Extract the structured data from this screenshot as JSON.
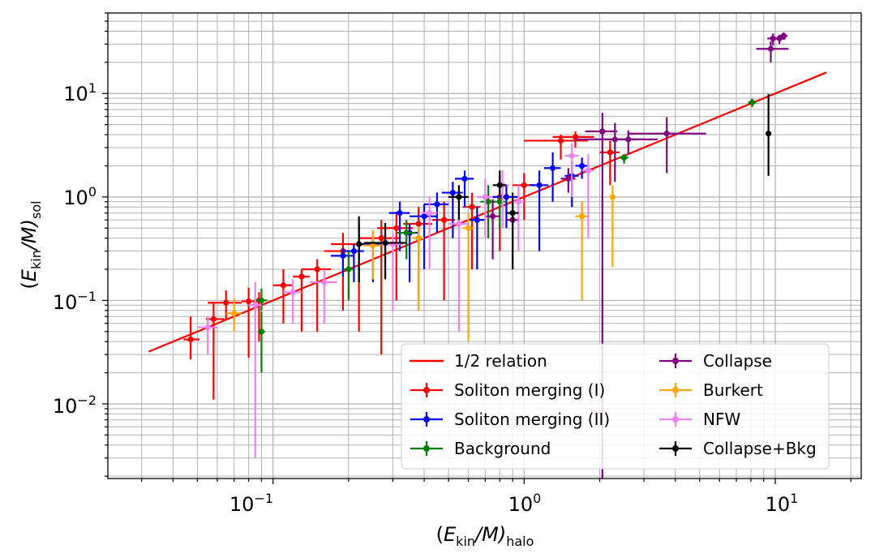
{
  "chart_data": {
    "type": "scatter",
    "xscale": "log",
    "yscale": "log",
    "xlim": [
      0.022,
      22
    ],
    "ylim": [
      0.0019,
      60
    ],
    "grid": true,
    "x_ticks": [
      {
        "value": 0.1,
        "base": "10",
        "exp": "−1"
      },
      {
        "value": 1,
        "base": "10",
        "exp": "0"
      },
      {
        "value": 10,
        "base": "10",
        "exp": "1"
      }
    ],
    "y_ticks": [
      {
        "value": 0.01,
        "base": "10",
        "exp": "−2"
      },
      {
        "value": 0.1,
        "base": "10",
        "exp": "−1"
      },
      {
        "value": 1,
        "base": "10",
        "exp": "0"
      },
      {
        "value": 10,
        "base": "10",
        "exp": "1"
      }
    ],
    "xlabel": {
      "open": "(",
      "var": "E",
      "sub_var": "kin",
      "rest": "/M)",
      "sub": "halo"
    },
    "ylabel": {
      "open": "(",
      "var": "E",
      "sub_var": "kin",
      "rest": "/M)",
      "sub": "sol"
    },
    "relation": {
      "label": "1/2 relation",
      "color": "#ff0000",
      "x": [
        0.032,
        16
      ],
      "y": [
        0.032,
        16
      ]
    },
    "legend_position": "lower-right",
    "series": [
      {
        "name": "Soliton merging (I)",
        "color": "#ff0000",
        "points": [
          [
            0.047,
            0.042,
            0.015,
            0.028,
            0.003,
            0.004
          ],
          [
            0.058,
            0.066,
            0.055,
            0.028,
            0.004,
            0.006
          ],
          [
            0.065,
            0.095,
            0.03,
            0.03,
            0.01,
            0.01
          ],
          [
            0.08,
            0.098,
            0.07,
            0.035,
            0.005,
            0.006
          ],
          [
            0.088,
            0.1,
            0.06,
            0.02,
            0.004,
            0.005
          ],
          [
            0.11,
            0.14,
            0.08,
            0.06,
            0.01,
            0.01
          ],
          [
            0.13,
            0.17,
            0.12,
            0.03,
            0.01,
            0.01
          ],
          [
            0.15,
            0.2,
            0.15,
            0.05,
            0.02,
            0.02
          ],
          [
            0.19,
            0.3,
            0.22,
            0.15,
            0.03,
            0.03
          ],
          [
            0.22,
            0.35,
            0.3,
            0.2,
            0.05,
            0.05
          ],
          [
            0.27,
            0.4,
            0.37,
            0.2,
            0.05,
            0.05
          ],
          [
            0.31,
            0.5,
            0.4,
            0.22,
            0.05,
            0.05
          ],
          [
            0.38,
            0.55,
            0.45,
            0.25,
            0.05,
            0.05
          ],
          [
            0.48,
            0.6,
            0.5,
            0.3,
            0.05,
            0.05
          ],
          [
            0.62,
            0.8,
            0.6,
            0.3,
            0.05,
            0.05
          ],
          [
            0.8,
            1.0,
            0.7,
            0.3,
            0.05,
            0.05
          ],
          [
            1.0,
            1.3,
            0.7,
            0.4,
            0.1,
            0.1
          ],
          [
            1.4,
            3.5,
            1.2,
            0.5,
            0.4,
            0.4
          ],
          [
            1.6,
            3.8,
            0.8,
            0.5,
            0.3,
            0.3
          ],
          [
            2.2,
            2.7,
            1.4,
            0.8,
            0.2,
            0.2
          ]
        ]
      },
      {
        "name": "Soliton merging (II)",
        "color": "#0000ff",
        "points": [
          [
            0.19,
            0.27,
            0.1,
            0.05,
            0.02,
            0.02
          ],
          [
            0.21,
            0.3,
            0.15,
            0.05,
            0.02,
            0.02
          ],
          [
            0.25,
            0.35,
            0.2,
            0.1,
            0.03,
            0.03
          ],
          [
            0.32,
            0.7,
            0.4,
            0.2,
            0.03,
            0.03
          ],
          [
            0.35,
            0.45,
            0.3,
            0.1,
            0.03,
            0.03
          ],
          [
            0.4,
            0.65,
            0.45,
            0.2,
            0.05,
            0.05
          ],
          [
            0.45,
            0.85,
            0.4,
            0.25,
            0.05,
            0.05
          ],
          [
            0.52,
            1.1,
            0.7,
            0.3,
            0.05,
            0.05
          ],
          [
            0.58,
            1.5,
            0.7,
            0.3,
            0.05,
            0.05
          ],
          [
            0.65,
            0.6,
            0.4,
            0.2,
            0.05,
            0.05
          ],
          [
            0.85,
            1.0,
            0.5,
            0.3,
            0.1,
            0.1
          ],
          [
            1.15,
            1.3,
            1.0,
            0.5,
            0.1,
            0.1
          ],
          [
            1.3,
            1.9,
            1.0,
            0.8,
            0.1,
            0.1
          ],
          [
            1.55,
            1.6,
            0.8,
            0.6,
            0.1,
            0.1
          ],
          [
            1.7,
            2.0,
            0.5,
            0.4,
            0.1,
            0.1
          ]
        ]
      },
      {
        "name": "Background",
        "color": "#008000",
        "points": [
          [
            0.09,
            0.05,
            0.03,
            0.028,
            0.003,
            0.003
          ],
          [
            0.09,
            0.1,
            0.02,
            0.03,
            0.005,
            0.005
          ],
          [
            0.2,
            0.2,
            0.1,
            0.1,
            0.01,
            0.01
          ],
          [
            0.34,
            0.45,
            0.2,
            0.15,
            0.03,
            0.03
          ],
          [
            0.72,
            0.9,
            0.5,
            0.4,
            0.05,
            0.05
          ],
          [
            0.8,
            0.9,
            0.4,
            0.7,
            0.05,
            0.05
          ],
          [
            0.9,
            0.6,
            0.3,
            0.4,
            0.05,
            0.05
          ],
          [
            2.5,
            2.4,
            0.3,
            0.2,
            0.1,
            0.1
          ],
          [
            8.1,
            8.2,
            0.8,
            0.7,
            0.3,
            0.3
          ]
        ]
      },
      {
        "name": "Collapse",
        "color": "#800080",
        "points": [
          [
            0.75,
            0.65,
            0.4,
            0.3,
            0.05,
            0.05
          ],
          [
            0.9,
            0.6,
            0.4,
            0.3,
            0.05,
            0.05
          ],
          [
            1.5,
            1.5,
            0.4,
            0.4,
            0.1,
            0.1
          ],
          [
            2.05,
            4.3,
            4.8,
            2.2,
            0.3,
            0.3
          ],
          [
            2.3,
            3.6,
            2.2,
            1.6,
            0.7,
            0.7
          ],
          [
            2.6,
            3.6,
            1.0,
            0.8,
            0.8,
            0.8
          ],
          [
            3.7,
            4.1,
            2.4,
            1.8,
            1.1,
            1.6
          ],
          [
            9.6,
            27,
            7,
            5,
            1.2,
            1.7
          ],
          [
            9.8,
            34,
            5,
            4,
            0.5,
            0.5
          ],
          [
            10.4,
            34,
            4,
            3,
            0.6,
            0.6
          ],
          [
            10.8,
            36,
            3,
            3,
            0.4,
            0.4
          ]
        ]
      },
      {
        "name": "Burkert",
        "color": "#ffa500",
        "points": [
          [
            0.07,
            0.075,
            0.025,
            0.03,
            0.005,
            0.005
          ],
          [
            0.25,
            0.34,
            0.18,
            0.14,
            0.02,
            0.02
          ],
          [
            0.38,
            0.4,
            0.32,
            0.12,
            0.02,
            0.02
          ],
          [
            0.6,
            0.5,
            0.46,
            0.2,
            0.03,
            0.03
          ],
          [
            1.7,
            0.65,
            0.55,
            0.25,
            0.1,
            0.1
          ],
          [
            2.25,
            1.0,
            0.79,
            0.3,
            0.05,
            0.05
          ]
        ]
      },
      {
        "name": "NFW",
        "color": "#ee82ee",
        "points": [
          [
            0.055,
            0.055,
            0.025,
            0.015,
            0.005,
            0.005
          ],
          [
            0.085,
            0.09,
            0.087,
            0.06,
            0.005,
            0.005
          ],
          [
            0.12,
            0.12,
            0.06,
            0.04,
            0.01,
            0.01
          ],
          [
            0.16,
            0.15,
            0.09,
            0.05,
            0.02,
            0.02
          ],
          [
            0.3,
            0.35,
            0.27,
            0.1,
            0.03,
            0.03
          ],
          [
            0.42,
            0.7,
            0.5,
            0.3,
            0.03,
            0.03
          ],
          [
            0.55,
            0.55,
            0.5,
            0.2,
            0.05,
            0.05
          ],
          [
            0.7,
            1.0,
            0.6,
            0.5,
            0.05,
            0.05
          ],
          [
            0.82,
            1.3,
            0.8,
            0.5,
            0.05,
            0.05
          ],
          [
            0.95,
            0.9,
            0.6,
            0.4,
            0.05,
            0.05
          ],
          [
            1.55,
            2.5,
            1.5,
            0.8,
            0.1,
            0.1
          ],
          [
            1.8,
            1.8,
            1.4,
            0.8,
            0.1,
            0.1
          ]
        ]
      },
      {
        "name": "Collapse+Bkg",
        "color": "#000000",
        "points": [
          [
            0.22,
            0.35,
            0.2,
            0.3,
            0.005,
            0.01
          ],
          [
            0.28,
            0.36,
            0.2,
            0.2,
            0.05,
            0.06
          ],
          [
            0.55,
            1.0,
            0.4,
            0.3,
            0.05,
            0.05
          ],
          [
            0.9,
            0.7,
            0.5,
            0.4,
            0.05,
            0.05
          ],
          [
            0.8,
            1.3,
            0.3,
            0.5,
            0.05,
            0.05
          ],
          [
            9.4,
            4.1,
            2.5,
            5.8,
            0.1,
            0.1
          ]
        ]
      }
    ]
  }
}
